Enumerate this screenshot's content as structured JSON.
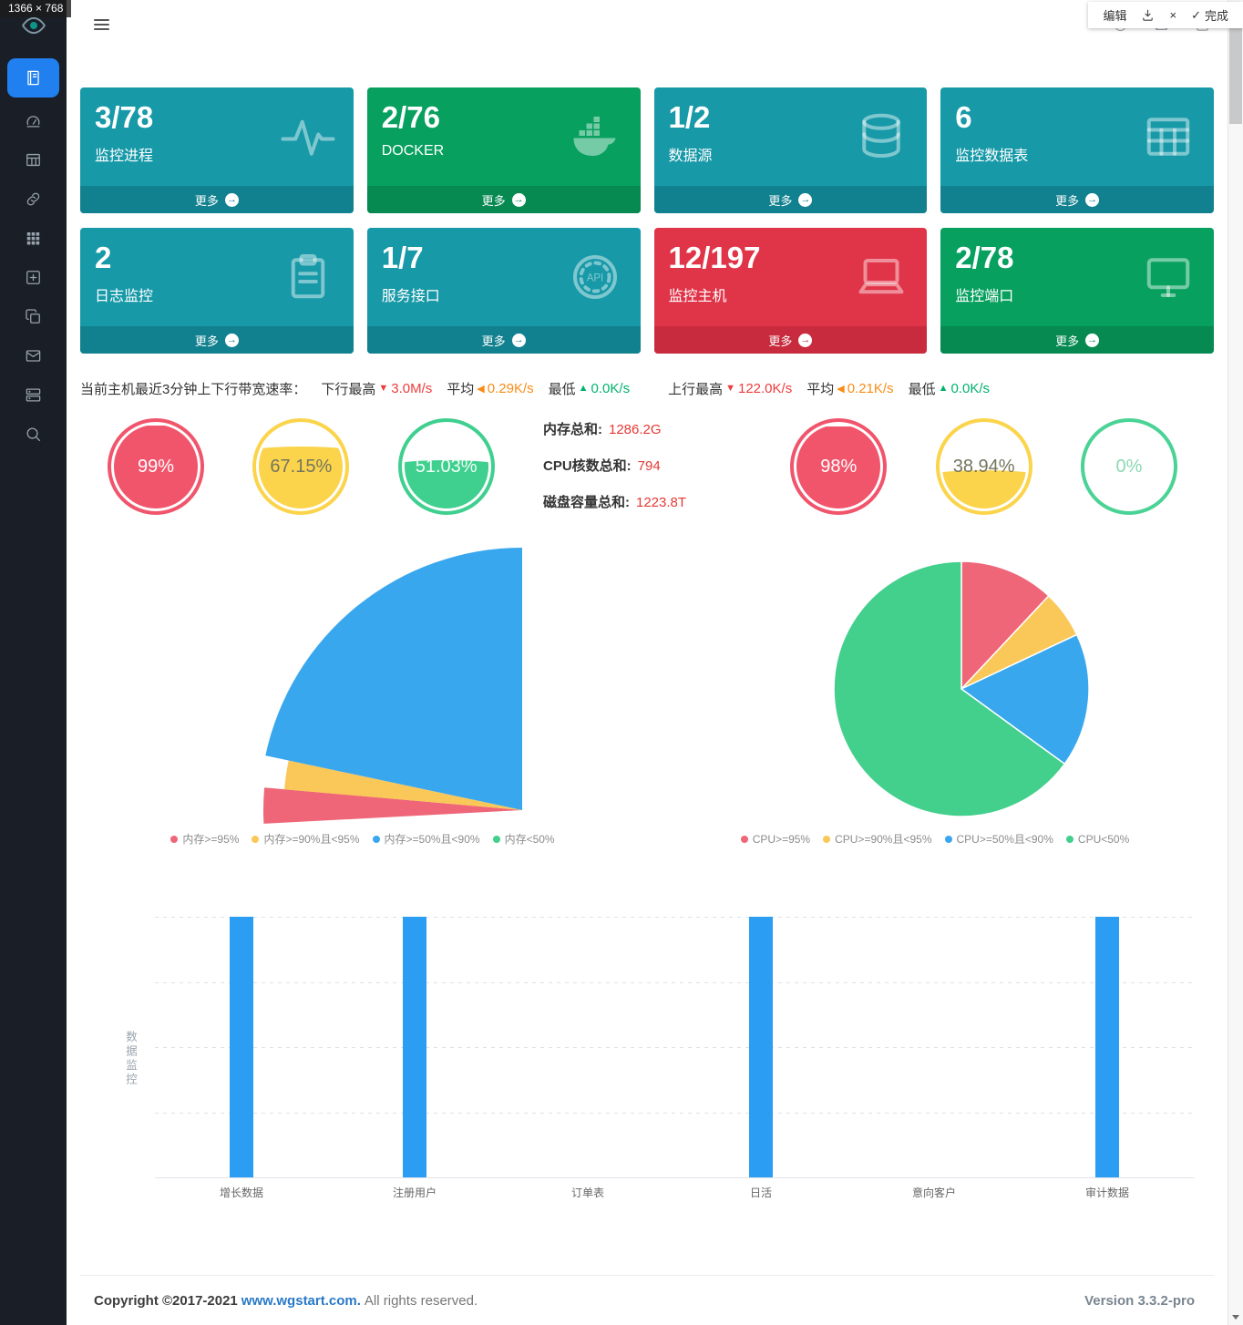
{
  "capture_overlay": {
    "size_badge": "1366 × 768",
    "edit_label": "编辑",
    "close_glyph": "×",
    "done_check": "✓",
    "done_label": "完成"
  },
  "sidebar": {
    "logo_icon": "eye-icon",
    "items": [
      {
        "icon": "book-icon",
        "active": true
      },
      {
        "icon": "gauge-icon",
        "active": false
      },
      {
        "icon": "table-icon",
        "active": false
      },
      {
        "icon": "link-icon",
        "active": false
      },
      {
        "icon": "grid-icon",
        "active": false
      },
      {
        "icon": "plus-square-icon",
        "active": false
      },
      {
        "icon": "copy-icon",
        "active": false
      },
      {
        "icon": "mail-icon",
        "active": false
      },
      {
        "icon": "server-icon",
        "active": false
      },
      {
        "icon": "search-icon",
        "active": false
      }
    ]
  },
  "header": {
    "right_icons": [
      "clock-icon",
      "image-icon",
      "box-icon"
    ]
  },
  "colors": {
    "themes": {
      "teal": {
        "bg": "#1799a8",
        "footer": "#12818f"
      },
      "green": {
        "bg": "#07a05f",
        "footer": "#068a51"
      },
      "red": {
        "bg": "#e03448",
        "footer": "#c72b3d"
      }
    },
    "active_nav": "#2080f0"
  },
  "stat_cards": [
    {
      "value": "3/78",
      "label": "监控进程",
      "more_label": "更多",
      "theme": "teal",
      "icon": "pulse-icon"
    },
    {
      "value": "2/76",
      "label": "DOCKER",
      "more_label": "更多",
      "theme": "green",
      "icon": "docker-icon"
    },
    {
      "value": "1/2",
      "label": "数据源",
      "more_label": "更多",
      "theme": "teal",
      "icon": "database-icon"
    },
    {
      "value": "6",
      "label": "监控数据表",
      "more_label": "更多",
      "theme": "teal",
      "icon": "data-table-icon"
    },
    {
      "value": "2",
      "label": "日志监控",
      "more_label": "更多",
      "theme": "teal",
      "icon": "clipboard-icon"
    },
    {
      "value": "1/7",
      "label": "服务接口",
      "more_label": "更多",
      "theme": "teal",
      "icon": "api-icon"
    },
    {
      "value": "12/197",
      "label": "监控主机",
      "more_label": "更多",
      "theme": "red",
      "icon": "laptop-icon"
    },
    {
      "value": "2/78",
      "label": "监控端口",
      "more_label": "更多",
      "theme": "green",
      "icon": "monitor-icon"
    }
  ],
  "bandwidth_bar": {
    "prefix": "当前主机最近3分钟上下行带宽速率：",
    "segments": [
      {
        "label": "下行最高",
        "arrow": "▼",
        "value": "3.0M/s",
        "color": "#ef3b3b",
        "gap_before": false
      },
      {
        "label": "平均",
        "arrow": "◀",
        "value": "0.29K/s",
        "color": "#fa8c16",
        "gap_before": false
      },
      {
        "label": "最低",
        "arrow": "▲",
        "value": "0.0K/s",
        "color": "#00b36b",
        "gap_before": false
      },
      {
        "label": "上行最高",
        "arrow": "▼",
        "value": "122.0K/s",
        "color": "#ef3b3b",
        "gap_before": true
      },
      {
        "label": "平均",
        "arrow": "◀",
        "value": "0.21K/s",
        "color": "#fa8c16",
        "gap_before": false
      },
      {
        "label": "最低",
        "arrow": "▲",
        "value": "0.0K/s",
        "color": "#00b36b",
        "gap_before": false
      }
    ]
  },
  "gauges": [
    {
      "value": "99%",
      "percent": 99,
      "color": "#f1556c",
      "text_color": "#ffffff"
    },
    {
      "value": "67.15%",
      "percent": 67,
      "color": "#fbd44c",
      "text_color": "#74745f"
    },
    {
      "value": "51.03%",
      "percent": 51,
      "color": "#3fcf8e",
      "text_color": "#f0fff7"
    },
    {
      "value": "98%",
      "percent": 98,
      "color": "#f1556c",
      "text_color": "#ffffff"
    },
    {
      "value": "38.94%",
      "percent": 39,
      "color": "#fbd44c",
      "text_color": "#74745f"
    },
    {
      "value": "0%",
      "percent": 0,
      "color": "#4ad395",
      "text_color": "#8bd9b2"
    }
  ],
  "summary_totals": [
    {
      "label": "内存总和:",
      "value": "1286.2G"
    },
    {
      "label": "CPU核数总和:",
      "value": "794"
    },
    {
      "label": "磁盘容量总和:",
      "value": "1223.8T"
    }
  ],
  "chart_data": [
    {
      "type": "pie",
      "variant": "nightingale-rose",
      "legend_position": "bottom",
      "center": [
        485,
        295
      ],
      "slices": [
        {
          "label": "内存>=95%",
          "color": "#ee6678",
          "value": 1,
          "start_deg": -93,
          "end_deg": -85,
          "radius": 284
        },
        {
          "label": "内存>=90%且<95%",
          "color": "#fac858",
          "value": 1,
          "start_deg": -85,
          "end_deg": -78,
          "radius": 262
        },
        {
          "label": "内存>=50%且<90%",
          "color": "#38a7ee",
          "value": 11,
          "start_deg": -78,
          "end_deg": 0,
          "radius": 288
        },
        {
          "label": "内存<50%",
          "color": "#43cf8c",
          "value": 0,
          "start_deg": 0,
          "end_deg": 0,
          "radius": 0
        }
      ]
    },
    {
      "type": "pie",
      "start_angle": "top",
      "direction": "clockwise",
      "legend_position": "bottom",
      "slices": [
        {
          "label": "CPU>=95%",
          "color": "#ee6678",
          "percent": 12
        },
        {
          "label": "CPU>=90%且<95%",
          "color": "#fac858",
          "percent": 6
        },
        {
          "label": "CPU>=50%且<90%",
          "color": "#38a7ee",
          "percent": 17
        },
        {
          "label": "CPU<50%",
          "color": "#43cf8c",
          "percent": 65
        }
      ]
    },
    {
      "type": "bar",
      "ylabel": "数据监控",
      "categories": [
        "增长数据",
        "注册用户",
        "订单表",
        "日活",
        "意向客户",
        "审计数据"
      ],
      "values": [
        1,
        1,
        0,
        1,
        0,
        1
      ],
      "ylim": [
        0,
        1
      ],
      "bar_color": "#2b9ef3",
      "grid": "dashed-horizontal"
    }
  ],
  "footer": {
    "copyright_prefix": "Copyright ©2017-2021",
    "link": "www.wgstart.com.",
    "suffix": "All rights reserved.",
    "version": "Version 3.3.2-pro"
  }
}
